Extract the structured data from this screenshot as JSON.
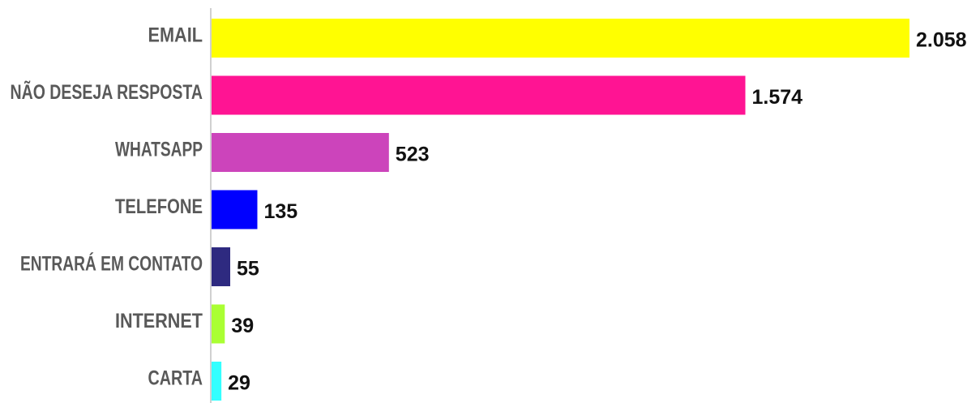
{
  "chart_data": {
    "type": "bar",
    "orientation": "horizontal",
    "categories": [
      "EMAIL",
      "NÃO DESEJA RESPOSTA",
      "WHATSAPP",
      "TELEFONE",
      "ENTRARÁ EM CONTATO",
      "INTERNET",
      "CARTA"
    ],
    "values": [
      2058,
      1574,
      523,
      135,
      55,
      39,
      29
    ],
    "value_labels": [
      "2.058",
      "1.574",
      "523",
      "135",
      "55",
      "39",
      "29"
    ],
    "colors": [
      "#ffff00",
      "#ff1493",
      "#cc44bb",
      "#0000ff",
      "#2e2a80",
      "#aaff33",
      "#33ffff"
    ],
    "title": "",
    "xlabel": "",
    "ylabel": "",
    "xlim": [
      0,
      2058
    ],
    "grid": false,
    "legend": "none"
  }
}
